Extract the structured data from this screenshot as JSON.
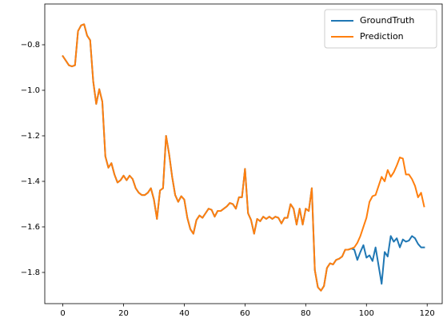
{
  "chart_data": {
    "type": "line",
    "x": [
      0,
      1,
      2,
      3,
      4,
      5,
      6,
      7,
      8,
      9,
      10,
      11,
      12,
      13,
      14,
      15,
      16,
      17,
      18,
      19,
      20,
      21,
      22,
      23,
      24,
      25,
      26,
      27,
      28,
      29,
      30,
      31,
      32,
      33,
      34,
      35,
      36,
      37,
      38,
      39,
      40,
      41,
      42,
      43,
      44,
      45,
      46,
      47,
      48,
      49,
      50,
      51,
      52,
      53,
      54,
      55,
      56,
      57,
      58,
      59,
      60,
      61,
      62,
      63,
      64,
      65,
      66,
      67,
      68,
      69,
      70,
      71,
      72,
      73,
      74,
      75,
      76,
      77,
      78,
      79,
      80,
      81,
      82,
      83,
      84,
      85,
      86,
      87,
      88,
      89,
      90,
      91,
      92,
      93,
      94,
      95,
      96,
      97,
      98,
      99,
      100,
      101,
      102,
      103,
      104,
      105,
      106,
      107,
      108,
      109,
      110,
      111,
      112,
      113,
      114,
      115,
      116,
      117,
      118,
      119
    ],
    "series": [
      {
        "name": "GroundTruth",
        "color": "#1f77b4",
        "values": [
          -0.85,
          -0.87,
          -0.89,
          -0.895,
          -0.89,
          -0.74,
          -0.715,
          -0.71,
          -0.76,
          -0.78,
          -0.96,
          -1.06,
          -0.995,
          -1.05,
          -1.29,
          -1.34,
          -1.32,
          -1.37,
          -1.405,
          -1.395,
          -1.375,
          -1.395,
          -1.375,
          -1.39,
          -1.43,
          -1.45,
          -1.46,
          -1.46,
          -1.45,
          -1.43,
          -1.48,
          -1.565,
          -1.44,
          -1.43,
          -1.2,
          -1.28,
          -1.38,
          -1.46,
          -1.49,
          -1.465,
          -1.48,
          -1.56,
          -1.61,
          -1.63,
          -1.57,
          -1.55,
          -1.56,
          -1.54,
          -1.52,
          -1.525,
          -1.555,
          -1.53,
          -1.53,
          -1.52,
          -1.51,
          -1.495,
          -1.5,
          -1.52,
          -1.47,
          -1.47,
          -1.345,
          -1.54,
          -1.57,
          -1.63,
          -1.565,
          -1.575,
          -1.555,
          -1.565,
          -1.555,
          -1.565,
          -1.555,
          -1.56,
          -1.585,
          -1.56,
          -1.56,
          -1.5,
          -1.52,
          -1.59,
          -1.52,
          -1.59,
          -1.52,
          -1.53,
          -1.43,
          -1.79,
          -1.865,
          -1.88,
          -1.86,
          -1.78,
          -1.76,
          -1.765,
          -1.745,
          -1.74,
          -1.73,
          -1.7,
          -1.7,
          -1.695,
          -1.7,
          -1.745,
          -1.71,
          -1.68,
          -1.735,
          -1.725,
          -1.75,
          -1.69,
          -1.77,
          -1.85,
          -1.71,
          -1.73,
          -1.64,
          -1.665,
          -1.65,
          -1.69,
          -1.655,
          -1.665,
          -1.66,
          -1.64,
          -1.65,
          -1.675,
          -1.69,
          -1.69
        ]
      },
      {
        "name": "Prediction",
        "color": "#ff7f0e",
        "values": [
          -0.85,
          -0.87,
          -0.89,
          -0.895,
          -0.89,
          -0.74,
          -0.715,
          -0.71,
          -0.76,
          -0.78,
          -0.96,
          -1.06,
          -0.995,
          -1.05,
          -1.29,
          -1.34,
          -1.32,
          -1.37,
          -1.405,
          -1.395,
          -1.375,
          -1.395,
          -1.375,
          -1.39,
          -1.43,
          -1.45,
          -1.46,
          -1.46,
          -1.45,
          -1.43,
          -1.48,
          -1.565,
          -1.44,
          -1.43,
          -1.2,
          -1.28,
          -1.38,
          -1.46,
          -1.49,
          -1.465,
          -1.48,
          -1.56,
          -1.61,
          -1.63,
          -1.57,
          -1.55,
          -1.56,
          -1.54,
          -1.52,
          -1.525,
          -1.555,
          -1.53,
          -1.53,
          -1.52,
          -1.51,
          -1.495,
          -1.5,
          -1.52,
          -1.47,
          -1.47,
          -1.345,
          -1.54,
          -1.57,
          -1.63,
          -1.565,
          -1.575,
          -1.555,
          -1.565,
          -1.555,
          -1.565,
          -1.555,
          -1.56,
          -1.585,
          -1.56,
          -1.56,
          -1.5,
          -1.52,
          -1.59,
          -1.52,
          -1.59,
          -1.52,
          -1.53,
          -1.43,
          -1.79,
          -1.865,
          -1.88,
          -1.86,
          -1.78,
          -1.76,
          -1.765,
          -1.745,
          -1.74,
          -1.73,
          -1.7,
          -1.7,
          -1.695,
          -1.69,
          -1.67,
          -1.64,
          -1.6,
          -1.56,
          -1.49,
          -1.465,
          -1.46,
          -1.42,
          -1.38,
          -1.4,
          -1.35,
          -1.38,
          -1.36,
          -1.33,
          -1.295,
          -1.3,
          -1.37,
          -1.37,
          -1.39,
          -1.42,
          -1.47,
          -1.45,
          -1.51
        ]
      }
    ],
    "xlim": [
      -5.95,
      124.95
    ],
    "ylim": [
      -1.937,
      -0.621
    ],
    "xticks": [
      0,
      20,
      40,
      60,
      80,
      100,
      120
    ],
    "yticks": [
      {
        "value": -1.8,
        "label": "−1.8"
      },
      {
        "value": -1.6,
        "label": "−1.6"
      },
      {
        "value": -1.4,
        "label": "−1.4"
      },
      {
        "value": -1.2,
        "label": "−1.2"
      },
      {
        "value": -1.0,
        "label": "−1.0"
      },
      {
        "value": -0.8,
        "label": "−0.8"
      }
    ],
    "legend": "upper right"
  }
}
